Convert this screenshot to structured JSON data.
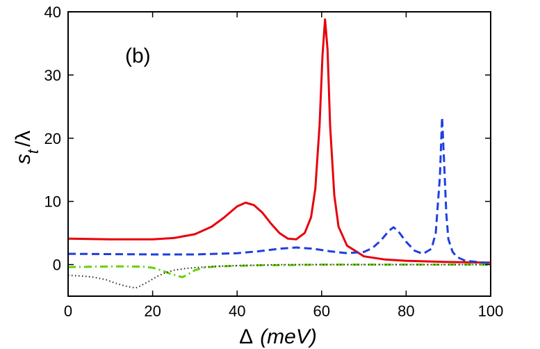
{
  "chart_data": {
    "type": "line",
    "panel_label": "(b)",
    "xlabel": {
      "symbol": "Δ",
      "unit": "(meV)"
    },
    "ylabel": {
      "main": "s",
      "subscript": "t",
      "rest": "/λ"
    },
    "xlim": [
      0,
      100
    ],
    "ylim": [
      -5,
      40
    ],
    "xticks": [
      0,
      20,
      40,
      60,
      80,
      100
    ],
    "yticks": [
      0,
      10,
      20,
      30,
      40
    ],
    "grid": false,
    "series": [
      {
        "name": "solid",
        "color": "#e8000b",
        "dash": "solid",
        "x": [
          0,
          10,
          20,
          25,
          30,
          34,
          37,
          40,
          42,
          44,
          46,
          48,
          50,
          52,
          54,
          56,
          57.5,
          58.5,
          59.5,
          60.2,
          60.8,
          61.4,
          62,
          63,
          64,
          66,
          70,
          75,
          80,
          90,
          100
        ],
        "y": [
          4.1,
          4.0,
          4.0,
          4.2,
          4.8,
          6.0,
          7.5,
          9.2,
          9.8,
          9.4,
          8.2,
          6.5,
          5.0,
          4.1,
          4.0,
          5.0,
          7.5,
          12,
          22,
          33,
          38.8,
          34,
          22,
          11,
          6,
          3,
          1.3,
          0.8,
          0.6,
          0.4,
          0.3
        ]
      },
      {
        "name": "dashed",
        "color": "#1f3fe0",
        "dash": "dashed",
        "x": [
          0,
          20,
          30,
          40,
          45,
          50,
          54,
          58,
          62,
          66,
          70,
          72,
          74,
          76,
          77,
          78,
          80,
          82,
          84,
          86,
          87,
          88,
          88.5,
          89,
          89.5,
          90,
          91,
          92,
          94,
          100
        ],
        "y": [
          1.7,
          1.6,
          1.6,
          1.8,
          2.1,
          2.5,
          2.7,
          2.5,
          2.1,
          1.8,
          2.0,
          2.6,
          3.8,
          5.4,
          5.9,
          5.4,
          3.6,
          2.2,
          1.7,
          2.5,
          5.0,
          14,
          23.3,
          16,
          8,
          4.0,
          2.0,
          1.2,
          0.6,
          0.2
        ]
      },
      {
        "name": "dash-dot",
        "color": "#66d010",
        "dash": "dashdot",
        "x": [
          0,
          5,
          10,
          15,
          18,
          20,
          22,
          24,
          26,
          27,
          28,
          29,
          30,
          32,
          35,
          40,
          45,
          50,
          60,
          70,
          80,
          90,
          100
        ],
        "y": [
          -0.4,
          -0.35,
          -0.3,
          -0.3,
          -0.35,
          -0.5,
          -0.9,
          -1.4,
          -1.8,
          -2.0,
          -1.7,
          -1.3,
          -0.9,
          -0.5,
          -0.3,
          -0.2,
          -0.1,
          -0.1,
          0,
          0,
          0,
          0,
          0
        ]
      },
      {
        "name": "dotted",
        "color": "#222222",
        "dash": "dotted",
        "x": [
          0,
          3,
          6,
          9,
          11,
          13,
          15,
          16,
          17,
          19,
          21,
          23,
          25,
          28,
          32,
          36,
          40,
          45,
          50,
          60,
          70,
          80,
          90,
          100
        ],
        "y": [
          -1.7,
          -1.8,
          -2.0,
          -2.4,
          -2.9,
          -3.3,
          -3.6,
          -3.7,
          -3.4,
          -2.7,
          -1.9,
          -1.3,
          -0.9,
          -0.6,
          -0.4,
          -0.25,
          -0.15,
          -0.1,
          0,
          0,
          0,
          0,
          0,
          0
        ]
      }
    ]
  }
}
